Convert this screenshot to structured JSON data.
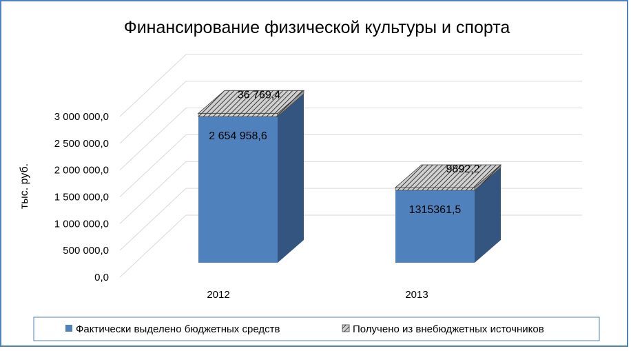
{
  "chart_data": {
    "type": "bar",
    "title": "Финансирование физической культуры и спорта",
    "ylabel": "тыс. руб.",
    "xlabel": "",
    "categories": [
      "2012",
      "2013"
    ],
    "ylim": [
      0,
      3000000
    ],
    "yticks": [
      0,
      500000,
      1000000,
      1500000,
      2000000,
      2500000,
      3000000
    ],
    "ytick_labels": [
      "0,0",
      "500 000,0",
      "1 000 000,0",
      "1 500 000,0",
      "2 000 000,0",
      "2 500 000,0",
      "3 000 000,0"
    ],
    "stacked": true,
    "three_d": true,
    "grid": true,
    "legend_position": "bottom",
    "series": [
      {
        "name": "Фактически выделено бюджетных средств",
        "values": [
          2654958.6,
          1315361.5
        ],
        "labels": [
          "2 654 958,6",
          "1315361,5"
        ],
        "color": "#4f81bd"
      },
      {
        "name": "Получено из внебюджетных источников",
        "values": [
          36769.4,
          9892.2
        ],
        "labels": [
          "36 769,4",
          "9892,2"
        ],
        "color": "#a6a6a6",
        "pattern": "hatched"
      }
    ]
  }
}
